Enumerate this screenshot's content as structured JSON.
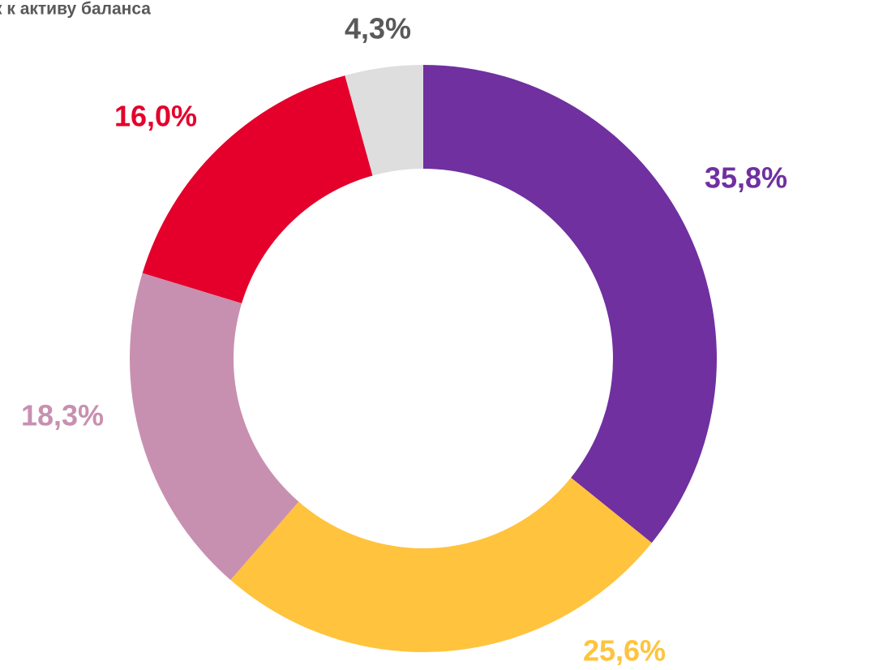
{
  "chart_data": {
    "type": "donut",
    "title": "к к активу баланса",
    "values": [
      35.8,
      25.6,
      18.3,
      16.0,
      4.3
    ],
    "value_labels": [
      "35,8%",
      "25,6%",
      "18,3%",
      "16,0%",
      "4,3%"
    ],
    "colors": [
      "#7030a0",
      "#ffc33d",
      "#c890b0",
      "#e4002b",
      "#dedede"
    ],
    "label_colors": [
      "#7030a0",
      "#ffc33d",
      "#c890b0",
      "#e4002b",
      "#595959"
    ]
  }
}
